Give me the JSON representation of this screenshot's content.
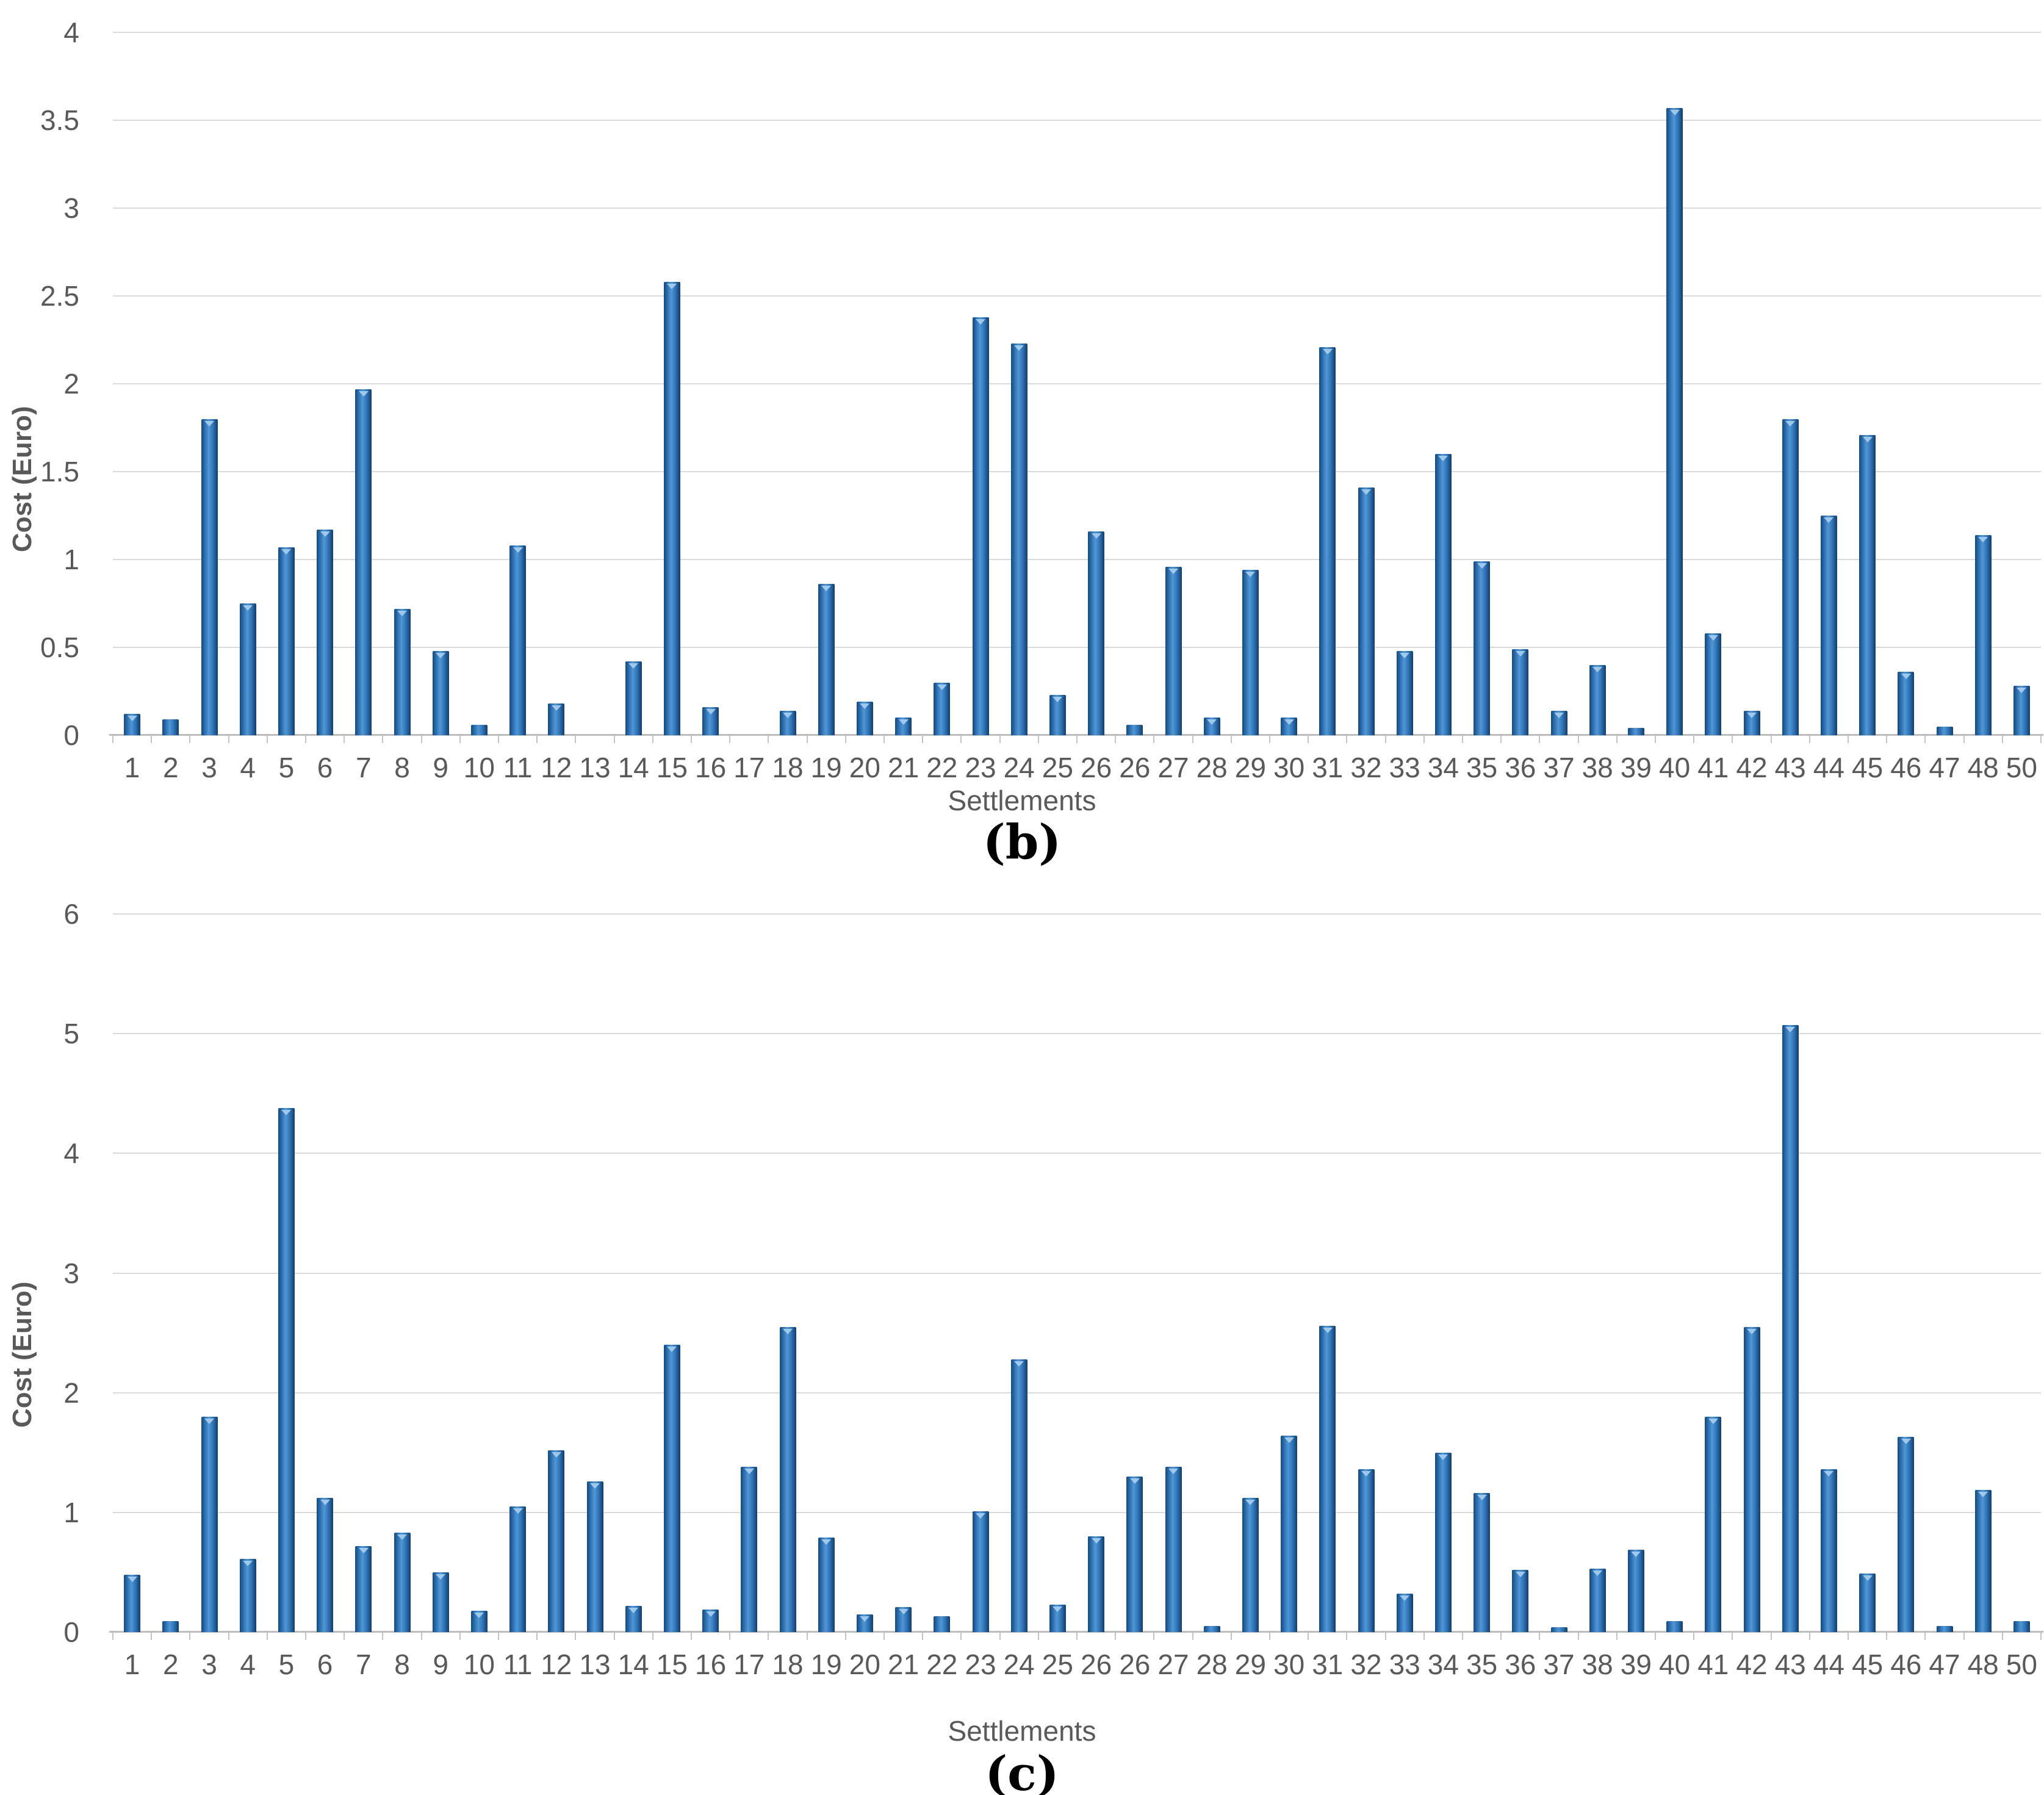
{
  "chart_data": [
    {
      "id": "b",
      "type": "bar",
      "title": "",
      "caption": "(b)",
      "xlabel": "Settlements",
      "ylabel": "Cost (Euro)",
      "bar_color": "#2e71b2",
      "ylim": [
        0,
        4
      ],
      "grid": true,
      "yticks": [
        "4",
        "3.5",
        "3",
        "2.5",
        "2",
        "1.5",
        "1",
        "0.5",
        "0"
      ],
      "categories": [
        "1",
        "2",
        "3",
        "4",
        "5",
        "6",
        "7",
        "8",
        "9",
        "10",
        "11",
        "12",
        "13",
        "14",
        "15",
        "16",
        "17",
        "18",
        "19",
        "20",
        "21",
        "22",
        "23",
        "24",
        "25",
        "26",
        "26",
        "27",
        "28",
        "29",
        "30",
        "31",
        "32",
        "33",
        "34",
        "35",
        "36",
        "37",
        "38",
        "39",
        "40",
        "41",
        "42",
        "43",
        "44",
        "45",
        "46",
        "47",
        "48",
        "50"
      ],
      "values": [
        0.12,
        0.09,
        1.8,
        0.75,
        1.07,
        1.17,
        1.97,
        0.72,
        0.48,
        0.06,
        1.08,
        0.18,
        0,
        0.42,
        2.58,
        0.16,
        0,
        0.14,
        0.86,
        0.19,
        0.1,
        0.3,
        2.38,
        2.23,
        0.23,
        1.16,
        0.06,
        0.96,
        0.1,
        0.94,
        0.1,
        2.21,
        1.41,
        0.48,
        1.6,
        0.99,
        0.49,
        0.14,
        0.4,
        0.04,
        3.57,
        0.58,
        0.14,
        1.8,
        1.25,
        1.71,
        0.36,
        0.05,
        1.14,
        0.28
      ]
    },
    {
      "id": "c",
      "type": "bar",
      "title": "",
      "caption": "(c)",
      "xlabel": "Settlements",
      "ylabel": "Cost (Euro)",
      "bar_color": "#2e71b2",
      "ylim": [
        0,
        6
      ],
      "grid": true,
      "yticks": [
        "6",
        "5",
        "4",
        "3",
        "2",
        "1",
        "0"
      ],
      "categories": [
        "1",
        "2",
        "3",
        "4",
        "5",
        "6",
        "7",
        "8",
        "9",
        "10",
        "11",
        "12",
        "13",
        "14",
        "15",
        "16",
        "17",
        "18",
        "19",
        "20",
        "21",
        "22",
        "23",
        "24",
        "25",
        "26",
        "26",
        "27",
        "28",
        "29",
        "30",
        "31",
        "32",
        "33",
        "34",
        "35",
        "36",
        "37",
        "38",
        "39",
        "40",
        "41",
        "42",
        "43",
        "44",
        "45",
        "46",
        "47",
        "48",
        "50"
      ],
      "values": [
        0.48,
        0.09,
        1.8,
        0.61,
        4.38,
        1.12,
        0.72,
        0.83,
        0.5,
        0.18,
        1.05,
        1.52,
        1.26,
        0.22,
        2.4,
        0.19,
        1.38,
        2.55,
        0.79,
        0.15,
        0.21,
        0.13,
        1.01,
        2.28,
        0.23,
        0.8,
        1.3,
        1.38,
        0.05,
        1.12,
        1.64,
        2.56,
        1.36,
        0.32,
        1.5,
        1.16,
        0.52,
        0.04,
        0.53,
        0.69,
        0.09,
        1.8,
        2.55,
        5.07,
        1.36,
        0.49,
        1.63,
        0.05,
        1.19,
        0.09
      ]
    }
  ]
}
